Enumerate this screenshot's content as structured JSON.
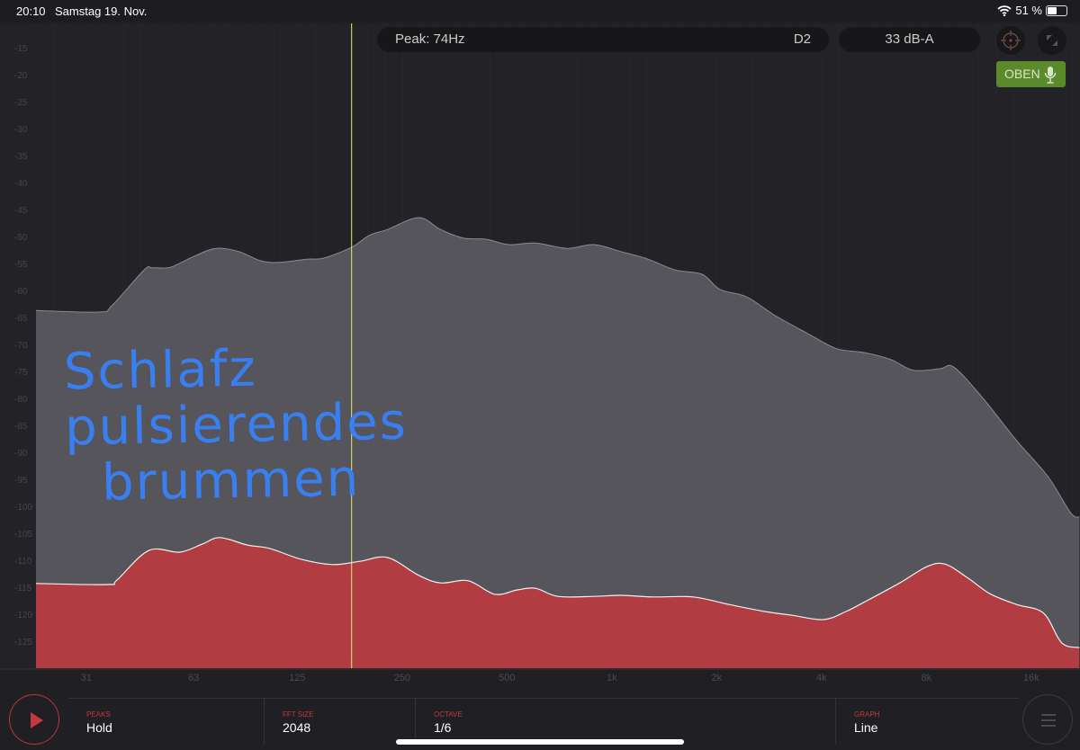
{
  "status_bar": {
    "time": "20:10",
    "date": "Samstag 19. Nov.",
    "battery": "51 %",
    "battery_level": 0.51,
    "wifi_icon": "wifi-icon"
  },
  "header": {
    "peak": "Peak: 74Hz",
    "note": "D2",
    "level": "33 dB-A",
    "crosshair_icon": "crosshair-icon",
    "fullscreen_icon": "expand-icon",
    "mic_button": "OBEN",
    "mic_icon": "microphone-icon"
  },
  "colors": {
    "peak_fill": "#56555b",
    "current_fill": "#b13c42",
    "cursor": "#e8e87a",
    "accent": "#c0393e",
    "mic_button": "#5a8a2c"
  },
  "annotation": [
    "Schlafz",
    "pulsierendes",
    "brummen"
  ],
  "controls": [
    {
      "label": "PEAKS",
      "value": "Hold"
    },
    {
      "label": "FFT SIZE",
      "value": "2048"
    },
    {
      "label": "OCTAVE",
      "value": "1/6"
    },
    {
      "label": "GRAPH",
      "value": "Line"
    }
  ],
  "chart_data": {
    "type": "area",
    "xscale": "log2",
    "xlabel": "",
    "ylabel": "",
    "xlim": [
      22,
      22000
    ],
    "ylim": [
      -129,
      -10
    ],
    "x_ticks": [
      "31",
      "63",
      "125",
      "250",
      "500",
      "1k",
      "2k",
      "4k",
      "8k",
      "16k"
    ],
    "x_tick_values": [
      31,
      63,
      125,
      250,
      500,
      1000,
      2000,
      4000,
      8000,
      16000
    ],
    "y_ticks": [
      -15,
      -20,
      -25,
      -30,
      -35,
      -40,
      -45,
      -50,
      -55,
      -60,
      -65,
      -70,
      -75,
      -80,
      -85,
      -90,
      -95,
      -100,
      -105,
      -110,
      -115,
      -120,
      -125
    ],
    "cursor_hz": 179,
    "grid": true,
    "series": [
      {
        "role": "peak-hold",
        "points": [
          [
            22,
            -63.7
          ],
          [
            33.7,
            -64
          ],
          [
            36.7,
            -62.8
          ],
          [
            45.4,
            -56.2
          ],
          [
            48,
            -55.8
          ],
          [
            54,
            -55.7
          ],
          [
            63,
            -53.7
          ],
          [
            73,
            -52.2
          ],
          [
            85,
            -52.8
          ],
          [
            98,
            -54.5
          ],
          [
            111,
            -54.8
          ],
          [
            133,
            -54.2
          ],
          [
            149,
            -54
          ],
          [
            179,
            -52
          ],
          [
            201,
            -49.8
          ],
          [
            227,
            -48.7
          ],
          [
            279,
            -46.5
          ],
          [
            322,
            -48.7
          ],
          [
            375,
            -50.3
          ],
          [
            435,
            -50.5
          ],
          [
            506,
            -51.5
          ],
          [
            604,
            -51.2
          ],
          [
            743,
            -52.2
          ],
          [
            888,
            -51.5
          ],
          [
            1063,
            -52.8
          ],
          [
            1270,
            -54.2
          ],
          [
            1520,
            -56.2
          ],
          [
            1815,
            -57
          ],
          [
            2044,
            -59.8
          ],
          [
            2440,
            -61.2
          ],
          [
            2918,
            -64.5
          ],
          [
            3700,
            -68.2
          ],
          [
            4425,
            -70.8
          ],
          [
            5290,
            -71.5
          ],
          [
            6324,
            -72.8
          ],
          [
            7330,
            -74.8
          ],
          [
            8760,
            -74.5
          ],
          [
            9580,
            -74.2
          ],
          [
            11460,
            -79.5
          ],
          [
            14520,
            -87.8
          ],
          [
            17870,
            -94.5
          ],
          [
            20750,
            -101.2
          ],
          [
            22000,
            -102
          ]
        ]
      },
      {
        "role": "current",
        "points": [
          [
            22,
            -114.3
          ],
          [
            35.6,
            -114.5
          ],
          [
            37.9,
            -113.7
          ],
          [
            46.8,
            -108.2
          ],
          [
            57.5,
            -108.5
          ],
          [
            66.7,
            -107
          ],
          [
            75,
            -105.8
          ],
          [
            90,
            -107.2
          ],
          [
            104,
            -107.8
          ],
          [
            128,
            -109.8
          ],
          [
            158,
            -110.8
          ],
          [
            189,
            -110.2
          ],
          [
            227,
            -109.5
          ],
          [
            279,
            -112.8
          ],
          [
            322,
            -114.2
          ],
          [
            387,
            -113.8
          ],
          [
            461,
            -116.3
          ],
          [
            535,
            -115.5
          ],
          [
            604,
            -115.2
          ],
          [
            700,
            -116.7
          ],
          [
            888,
            -116.7
          ],
          [
            1063,
            -116.5
          ],
          [
            1310,
            -116.8
          ],
          [
            1710,
            -116.8
          ],
          [
            2170,
            -118.2
          ],
          [
            2750,
            -119.5
          ],
          [
            3290,
            -120.2
          ],
          [
            4050,
            -121
          ],
          [
            4700,
            -119.5
          ],
          [
            5290,
            -117.8
          ],
          [
            6710,
            -114.2
          ],
          [
            8020,
            -111.2
          ],
          [
            9030,
            -110.7
          ],
          [
            10480,
            -113.2
          ],
          [
            12170,
            -116.2
          ],
          [
            14520,
            -118.2
          ],
          [
            17350,
            -119.8
          ],
          [
            19560,
            -125.3
          ],
          [
            22000,
            -126.2
          ]
        ]
      }
    ]
  }
}
